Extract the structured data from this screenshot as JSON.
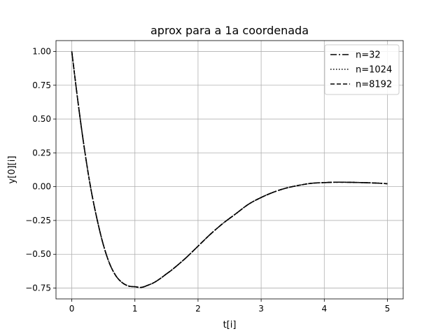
{
  "chart_data": {
    "type": "line",
    "title": "aprox para a 1a coordenada",
    "xlabel": "t[i]",
    "ylabel": "y[0][i]",
    "xlim": [
      -0.25,
      5.25
    ],
    "ylim": [
      -0.83,
      1.08
    ],
    "xticks": [
      0,
      1,
      2,
      3,
      4,
      5
    ],
    "xtick_labels": [
      "0",
      "1",
      "2",
      "3",
      "4",
      "5"
    ],
    "yticks": [
      -0.75,
      -0.5,
      -0.25,
      0.0,
      0.25,
      0.5,
      0.75,
      1.0
    ],
    "ytick_labels": [
      "−0.75",
      "−0.50",
      "−0.25",
      "0.00",
      "0.25",
      "0.50",
      "0.75",
      "1.00"
    ],
    "grid": true,
    "legend_position": "top-right",
    "x": [
      0.0,
      0.1,
      0.2,
      0.3,
      0.4,
      0.5,
      0.6,
      0.7,
      0.8,
      0.9,
      1.0,
      1.1,
      1.2,
      1.3,
      1.4,
      1.5,
      1.6,
      1.8,
      2.0,
      2.2,
      2.4,
      2.6,
      2.8,
      3.0,
      3.2,
      3.4,
      3.6,
      3.8,
      4.0,
      4.2,
      4.4,
      4.6,
      4.8,
      5.0
    ],
    "series": [
      {
        "name": "n=32",
        "color": "#000000",
        "dash": "dashdot",
        "values": [
          1.0,
          0.62,
          0.28,
          -0.01,
          -0.24,
          -0.43,
          -0.57,
          -0.66,
          -0.71,
          -0.735,
          -0.74,
          -0.745,
          -0.73,
          -0.71,
          -0.68,
          -0.645,
          -0.61,
          -0.53,
          -0.44,
          -0.35,
          -0.27,
          -0.2,
          -0.13,
          -0.08,
          -0.04,
          -0.01,
          0.01,
          0.025,
          0.03,
          0.033,
          0.032,
          0.03,
          0.027,
          0.022
        ]
      },
      {
        "name": "n=1024",
        "color": "#000000",
        "dash": "dotted",
        "values": [
          1.0,
          0.62,
          0.28,
          -0.01,
          -0.24,
          -0.43,
          -0.57,
          -0.66,
          -0.71,
          -0.735,
          -0.74,
          -0.745,
          -0.73,
          -0.71,
          -0.68,
          -0.645,
          -0.61,
          -0.53,
          -0.44,
          -0.35,
          -0.27,
          -0.2,
          -0.13,
          -0.08,
          -0.04,
          -0.01,
          0.01,
          0.025,
          0.03,
          0.033,
          0.032,
          0.03,
          0.027,
          0.022
        ]
      },
      {
        "name": "n=8192",
        "color": "#000000",
        "dash": "dashed",
        "values": [
          1.0,
          0.62,
          0.28,
          -0.01,
          -0.24,
          -0.43,
          -0.57,
          -0.66,
          -0.71,
          -0.735,
          -0.74,
          -0.745,
          -0.73,
          -0.71,
          -0.68,
          -0.645,
          -0.61,
          -0.53,
          -0.44,
          -0.35,
          -0.27,
          -0.2,
          -0.13,
          -0.08,
          -0.04,
          -0.01,
          0.01,
          0.025,
          0.03,
          0.033,
          0.032,
          0.03,
          0.027,
          0.022
        ]
      }
    ]
  }
}
